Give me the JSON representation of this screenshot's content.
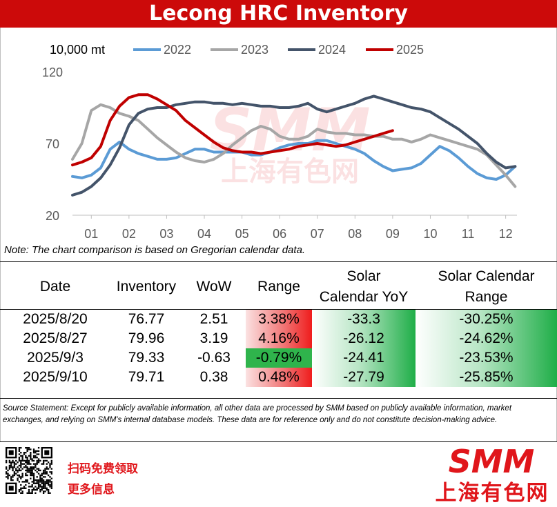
{
  "title": "Lecong HRC Inventory",
  "chart_data": {
    "type": "line",
    "unit": "10,000  mt",
    "y_ticks": [
      "120",
      "70",
      "20"
    ],
    "ylim": [
      20,
      120
    ],
    "x_ticks": [
      "01",
      "02",
      "03",
      "04",
      "05",
      "06",
      "07",
      "08",
      "09",
      "10",
      "11",
      "12"
    ],
    "xlim": [
      0.5,
      12.3
    ],
    "legend_position": "top",
    "series": [
      {
        "name": "2022",
        "color": "#5b9bd5",
        "x": [
          0.5,
          0.75,
          1.0,
          1.25,
          1.5,
          1.75,
          2.0,
          2.25,
          2.5,
          2.75,
          3.0,
          3.25,
          3.5,
          3.75,
          4.0,
          4.25,
          4.5,
          4.75,
          5.0,
          5.25,
          5.5,
          5.75,
          6.0,
          6.25,
          6.5,
          6.75,
          7.0,
          7.25,
          7.5,
          7.75,
          8.0,
          8.25,
          8.5,
          8.75,
          9.0,
          9.25,
          9.5,
          9.75,
          10.0,
          10.25,
          10.5,
          10.75,
          11.0,
          11.25,
          11.5,
          11.75,
          12.0,
          12.25
        ],
        "y": [
          47,
          46,
          48,
          53,
          66,
          71,
          66,
          63,
          61,
          59,
          59,
          60,
          63,
          66,
          66,
          64,
          64,
          64,
          64,
          62,
          62,
          64,
          67,
          69,
          70,
          70,
          72,
          72,
          70,
          68,
          66,
          63,
          58,
          54,
          51,
          52,
          53,
          56,
          62,
          68,
          65,
          60,
          54,
          49,
          46,
          45,
          48,
          54
        ]
      },
      {
        "name": "2023",
        "color": "#a6a6a6",
        "x": [
          0.5,
          0.75,
          1.0,
          1.25,
          1.5,
          1.75,
          2.0,
          2.25,
          2.5,
          2.75,
          3.0,
          3.25,
          3.5,
          3.75,
          4.0,
          4.25,
          4.5,
          4.75,
          5.0,
          5.25,
          5.5,
          5.75,
          6.0,
          6.25,
          6.5,
          6.75,
          7.0,
          7.25,
          7.5,
          7.75,
          8.0,
          8.25,
          8.5,
          8.75,
          9.0,
          9.25,
          9.5,
          9.75,
          10.0,
          10.25,
          10.5,
          10.75,
          11.0,
          11.25,
          11.5,
          11.75,
          12.0,
          12.25
        ],
        "y": [
          59,
          70,
          93,
          97,
          95,
          91,
          89,
          86,
          80,
          74,
          69,
          64,
          60,
          58,
          57,
          59,
          63,
          69,
          74,
          79,
          82,
          80,
          75,
          73,
          73,
          75,
          80,
          78,
          77,
          77,
          76,
          76,
          75,
          75,
          73,
          73,
          71,
          73,
          76,
          74,
          72,
          70,
          68,
          66,
          62,
          55,
          48,
          40
        ]
      },
      {
        "name": "2024",
        "color": "#44546a",
        "x": [
          0.5,
          0.75,
          1.0,
          1.25,
          1.5,
          1.75,
          2.0,
          2.25,
          2.5,
          2.75,
          3.0,
          3.25,
          3.5,
          3.75,
          4.0,
          4.25,
          4.5,
          4.75,
          5.0,
          5.25,
          5.5,
          5.75,
          6.0,
          6.25,
          6.5,
          6.75,
          7.0,
          7.25,
          7.5,
          7.75,
          8.0,
          8.25,
          8.5,
          8.75,
          9.0,
          9.25,
          9.5,
          9.75,
          10.0,
          10.25,
          10.5,
          10.75,
          11.0,
          11.25,
          11.5,
          11.75,
          12.0,
          12.25
        ],
        "y": [
          34,
          36,
          40,
          46,
          55,
          67,
          83,
          91,
          94,
          95,
          95,
          97,
          98,
          99,
          99,
          98,
          98,
          97,
          98,
          97,
          96,
          96,
          95,
          95,
          96,
          98,
          94,
          92,
          94,
          96,
          98,
          101,
          103,
          101,
          99,
          97,
          95,
          94,
          92,
          88,
          84,
          80,
          75,
          70,
          63,
          57,
          53,
          54
        ]
      },
      {
        "name": "2025",
        "color": "#c00000",
        "x": [
          0.5,
          0.75,
          1.0,
          1.25,
          1.5,
          1.75,
          2.0,
          2.25,
          2.5,
          2.75,
          3.0,
          3.25,
          3.5,
          3.75,
          4.0,
          4.25,
          4.5,
          4.75,
          5.0,
          5.25,
          5.5,
          5.75,
          6.0,
          6.25,
          6.5,
          6.75,
          7.0,
          7.25,
          7.5,
          7.75,
          8.0,
          8.25,
          8.5,
          8.75,
          9.0
        ],
        "y": [
          55,
          57,
          60,
          68,
          86,
          96,
          102,
          104,
          104,
          101,
          97,
          93,
          86,
          81,
          76,
          71,
          67,
          65,
          64,
          64,
          63,
          64,
          65,
          66,
          68,
          69,
          70,
          69,
          68,
          69,
          71,
          73,
          75,
          77,
          79
        ]
      }
    ]
  },
  "note": "Note: The chart comparison is based on Gregorian calendar data.",
  "table": {
    "headers": [
      "Date",
      "Inventory",
      "WoW",
      "Range",
      "Solar\nCalendar YoY",
      "Solar   Calendar\nRange"
    ],
    "rows": [
      [
        "2025/8/20",
        "76.77",
        "2.51",
        "3.38%",
        "-33.3",
        "-30.25%"
      ],
      [
        "2025/8/27",
        "79.96",
        "3.19",
        "4.16%",
        "-26.12",
        "-24.62%"
      ],
      [
        "2025/9/3",
        "79.33",
        "-0.63",
        "-0.79%",
        "-24.41",
        "-23.53%"
      ],
      [
        "2025/9/10",
        "79.71",
        "0.38",
        "0.48%",
        "-27.79",
        "-25.85%"
      ]
    ]
  },
  "source": "Source Statement: Except for publicly available information, all other data are processed by SMM based on publicly available information, market exchanges, and relying on SMM's internal database models. These data are for reference only and do not constitute decision-making advice.",
  "footer": {
    "cta_line1": "扫码免费领取",
    "cta_line2": "更多信息",
    "logo_en": "SMM",
    "logo_cn": "上海有色网"
  },
  "colors": {
    "brand_red": "#cc0a0a",
    "positive_red": "#ef1c1c",
    "negative_green": "#2fb44c"
  }
}
